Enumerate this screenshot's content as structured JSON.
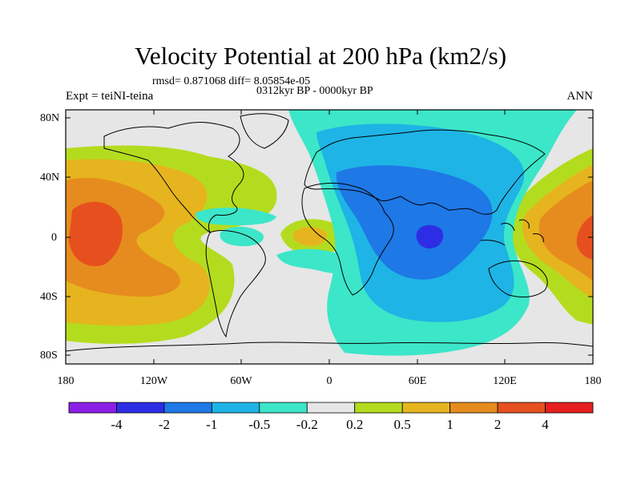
{
  "header": {
    "title": "Velocity Potential at 200 hPa (km2/s)",
    "stats": "rmsd= 0.871068 diff= 8.05854e-05",
    "period": "0312kyr BP - 0000kyr BP",
    "experiment": "Expt = teiNI-teina",
    "season": "ANN"
  },
  "map": {
    "projection": "cylindrical equidistant",
    "lat_range": [
      -90,
      90
    ],
    "lon_range": [
      -180,
      180
    ],
    "lat_labels": [
      "80N",
      "40N",
      "0",
      "40S",
      "80S"
    ],
    "lon_labels": [
      "180",
      "120W",
      "60W",
      "0",
      "60E",
      "120E",
      "180"
    ]
  },
  "colorbar": {
    "labels": [
      "-4",
      "-2",
      "-1",
      "-0.5",
      "-0.2",
      "0.2",
      "0.5",
      "1",
      "2",
      "4"
    ],
    "colors": [
      "#8c1ee6",
      "#2d2de6",
      "#1e78e6",
      "#1eb4e6",
      "#3ce6c8",
      "#e6e6e6",
      "#b4dc1e",
      "#e6b41e",
      "#e68c1e",
      "#e6501e",
      "#e61e1e"
    ]
  }
}
